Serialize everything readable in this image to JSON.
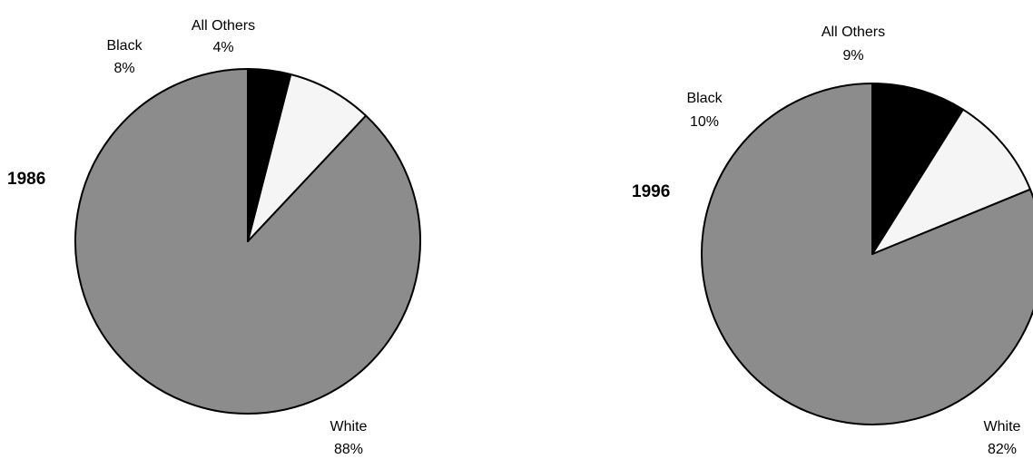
{
  "chart_data": [
    {
      "type": "pie",
      "title": "1986",
      "slices": [
        {
          "label": "White",
          "value": 88,
          "value_label": "88%",
          "color": "#8c8c8c"
        },
        {
          "label": "Black",
          "value": 8,
          "value_label": "8%",
          "color": "#f5f5f5"
        },
        {
          "label": "All Others",
          "value": 4,
          "value_label": "4%",
          "color": "#000000"
        }
      ]
    },
    {
      "type": "pie",
      "title": "1996",
      "slices": [
        {
          "label": "White",
          "value": 82,
          "value_label": "82%",
          "color": "#8c8c8c"
        },
        {
          "label": "Black",
          "value": 10,
          "value_label": "10%",
          "color": "#f5f5f5"
        },
        {
          "label": "All Others",
          "value": 9,
          "value_label": "9%",
          "color": "#000000"
        }
      ]
    }
  ]
}
